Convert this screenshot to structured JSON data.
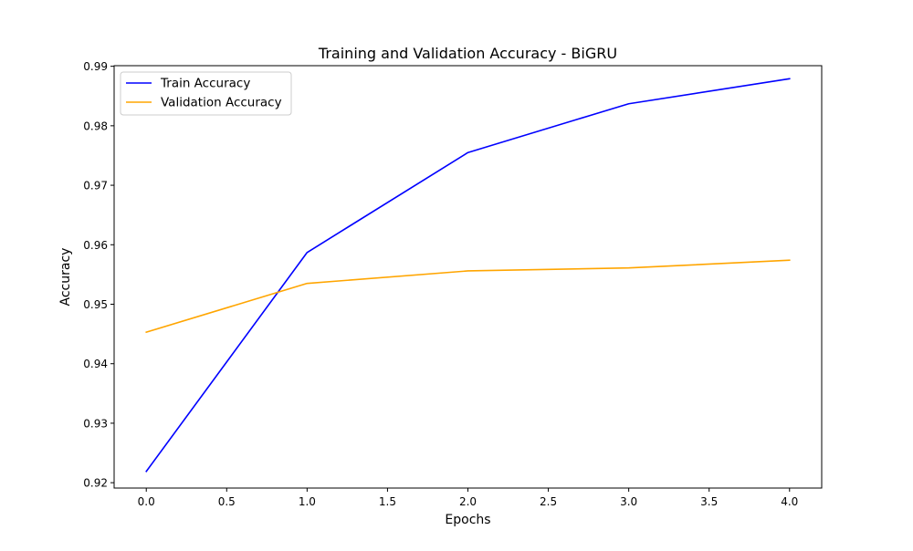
{
  "chart_data": {
    "type": "line",
    "title": "Training and Validation Accuracy - BiGRU",
    "xlabel": "Epochs",
    "ylabel": "Accuracy",
    "x": [
      0,
      1,
      2,
      3,
      4
    ],
    "xlim": [
      -0.2,
      4.2
    ],
    "ylim": [
      0.9191,
      0.9901
    ],
    "xticks": [
      0.0,
      0.5,
      1.0,
      1.5,
      2.0,
      2.5,
      3.0,
      3.5,
      4.0
    ],
    "xtick_labels": [
      "0.0",
      "0.5",
      "1.0",
      "1.5",
      "2.0",
      "2.5",
      "3.0",
      "3.5",
      "4.0"
    ],
    "yticks": [
      0.92,
      0.93,
      0.94,
      0.95,
      0.96,
      0.97,
      0.98,
      0.99
    ],
    "ytick_labels": [
      "0.92",
      "0.93",
      "0.94",
      "0.95",
      "0.96",
      "0.97",
      "0.98",
      "0.99"
    ],
    "grid": false,
    "legend_position": "upper-left",
    "series": [
      {
        "name": "Train Accuracy",
        "color": "#0000ff",
        "values": [
          0.9219,
          0.9587,
          0.9755,
          0.9837,
          0.9879
        ]
      },
      {
        "name": "Validation Accuracy",
        "color": "#ffa500",
        "values": [
          0.9453,
          0.9535,
          0.9556,
          0.9561,
          0.9574
        ]
      }
    ]
  }
}
